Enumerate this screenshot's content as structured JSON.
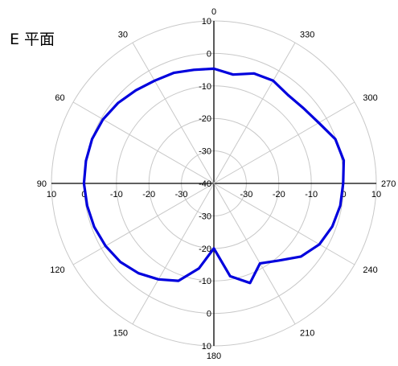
{
  "chart_data": {
    "type": "polar-line",
    "title": "E 平面",
    "r_range": [
      -40,
      10
    ],
    "r_ticks": [
      -40,
      -30,
      -20,
      -10,
      0,
      10
    ],
    "theta_ticks": [
      0,
      30,
      60,
      90,
      120,
      150,
      180,
      210,
      240,
      270,
      300,
      330
    ],
    "angle_direction": "counterclockwise",
    "zero_at": "top",
    "grid": true,
    "line_color": "#0000dd",
    "series": [
      {
        "theta": [
          0,
          10,
          20,
          30,
          40,
          50,
          60,
          70,
          80,
          90,
          100,
          110,
          120,
          130,
          140,
          150,
          160,
          170,
          180,
          190,
          200,
          210,
          220,
          230,
          240,
          250,
          260,
          270,
          280,
          290,
          300,
          310,
          320,
          330,
          340,
          350
        ],
        "r": [
          -4.7,
          -4.5,
          -3.8,
          -3.5,
          -2.6,
          -1.5,
          -0.6,
          -0.1,
          0.0,
          0.0,
          -0.4,
          -0.8,
          -1.5,
          -2.4,
          -3.9,
          -5.9,
          -8.1,
          -13.4,
          -20.0,
          -11.0,
          -7.4,
          -11.6,
          -9.0,
          -5.0,
          -2.5,
          -1.2,
          -0.5,
          -0.2,
          0.6,
          -0.2,
          -2.7,
          -4.0,
          -4.5,
          -3.5,
          -4.0,
          -6.0
        ]
      }
    ]
  }
}
